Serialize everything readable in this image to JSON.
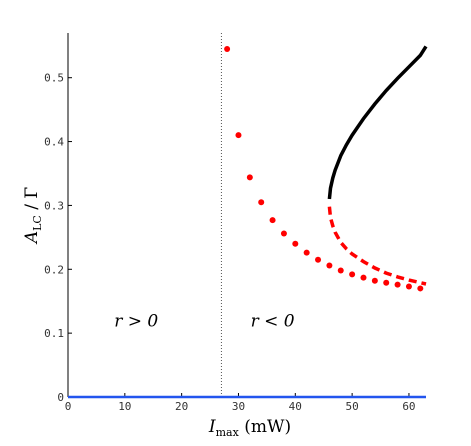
{
  "chart_data": {
    "type": "scatter",
    "title": "",
    "xlabel": {
      "main": "I",
      "sub": "max",
      "unit": " (mW)"
    },
    "ylabel": {
      "main": "A",
      "sub": "LC",
      "rest": " / Γ"
    },
    "xlim": [
      0,
      63
    ],
    "ylim": [
      0,
      0.57
    ],
    "xticks": [
      0,
      10,
      20,
      30,
      40,
      50,
      60
    ],
    "yticks": [
      0,
      0.1,
      0.2,
      0.3,
      0.4,
      0.5
    ],
    "ytick_labels": [
      "0",
      "0.1",
      "0.2",
      "0.3",
      "0.4",
      "0.5"
    ],
    "grid": false,
    "threshold_x": 27,
    "region_labels": [
      {
        "text": "r > 0",
        "x": 12,
        "y": 0.12
      },
      {
        "text": "r < 0",
        "x": 36,
        "y": 0.12
      }
    ],
    "series": [
      {
        "style": "scatter",
        "color": "#ff0000",
        "x": [
          28,
          30,
          32,
          34,
          36,
          38,
          40,
          42,
          44,
          46,
          48,
          50,
          52,
          54,
          56,
          58,
          60,
          62
        ],
        "y": [
          0.545,
          0.41,
          0.344,
          0.305,
          0.277,
          0.256,
          0.24,
          0.226,
          0.215,
          0.206,
          0.198,
          0.192,
          0.187,
          0.182,
          0.179,
          0.176,
          0.173,
          0.17
        ]
      },
      {
        "style": "solid",
        "color": "#000000",
        "x": [
          46,
          46.2,
          46.6,
          47,
          48,
          49,
          50,
          52,
          54,
          56,
          58,
          60,
          62,
          63
        ],
        "y": [
          0.31,
          0.327,
          0.343,
          0.355,
          0.378,
          0.395,
          0.41,
          0.436,
          0.459,
          0.48,
          0.499,
          0.517,
          0.535,
          0.549
        ]
      },
      {
        "style": "dashed",
        "color": "#ff0000",
        "x": [
          46,
          46.2,
          46.6,
          47,
          48,
          49,
          50,
          52,
          54,
          56,
          58,
          60,
          62,
          63
        ],
        "y": [
          0.298,
          0.281,
          0.268,
          0.258,
          0.242,
          0.232,
          0.224,
          0.212,
          0.202,
          0.194,
          0.188,
          0.183,
          0.179,
          0.177
        ]
      },
      {
        "style": "solid",
        "color": "#2255ee",
        "x": [
          0,
          63
        ],
        "y": [
          0,
          0
        ]
      }
    ]
  }
}
